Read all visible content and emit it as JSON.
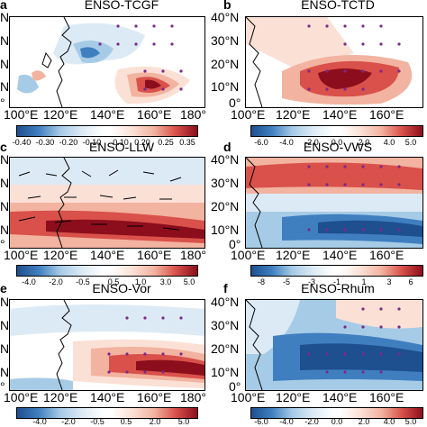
{
  "panels": [
    {
      "label": "a",
      "title": "ENSO-TCGF",
      "lat_ticks": [
        "N",
        "N",
        "N",
        "N",
        "°"
      ],
      "lon_ticks": [
        "100°E",
        "120°E",
        "140°E",
        "160°E",
        "180°"
      ],
      "colorbar": [
        "-0.40",
        "-0.30",
        "-0.20",
        "-0.10",
        "0.10",
        "0.20",
        "0.25",
        "0.35"
      ]
    },
    {
      "label": "b",
      "title": "ENSO-TCTD",
      "lat_ticks": [
        "40°N",
        "30°N",
        "20°N",
        "10°N",
        "0°"
      ],
      "lon_ticks": [
        "100°E",
        "120°E",
        "140°E",
        "160°E"
      ],
      "colorbar": [
        "-6.0",
        "-4.0",
        "-2.0",
        "0.0",
        "2.0",
        "4.0",
        "5.0"
      ]
    },
    {
      "label": "c",
      "title": "ENSO-LLW",
      "lat_ticks": [
        "N",
        "N",
        "N",
        "N",
        "°"
      ],
      "lon_ticks": [
        "100°E",
        "120°E",
        "140°E",
        "160°E",
        "180°"
      ],
      "colorbar": [
        "-4.0",
        "-2.0",
        "-0.5",
        "0.5",
        "1.0",
        "3.0",
        "5.0"
      ]
    },
    {
      "label": "d",
      "title": "ENSO-VWS",
      "lat_ticks": [
        "40°N",
        "30°N",
        "20°N",
        "10°N",
        "0°"
      ],
      "lon_ticks": [
        "100°E",
        "120°E",
        "140°E",
        "160°E"
      ],
      "colorbar": [
        "-8",
        "-5",
        "-3",
        "-1",
        "1",
        "3",
        "6"
      ]
    },
    {
      "label": "e",
      "title": "ENSO-Vor",
      "lat_ticks": [
        "N",
        "N",
        "N",
        "N",
        "°"
      ],
      "lon_ticks": [
        "100°E",
        "120°E",
        "140°E",
        "160°E",
        "180°"
      ],
      "colorbar": [
        "-4.0",
        "-2.0",
        "-0.5",
        "0.5",
        "2.0",
        "5.0"
      ]
    },
    {
      "label": "f",
      "title": "ENSO-Rhum",
      "lat_ticks": [
        "40°N",
        "30°N",
        "20°N",
        "10°N",
        "0°"
      ],
      "lon_ticks": [
        "100°E",
        "120°E",
        "140°E",
        "160°E"
      ],
      "colorbar": [
        "-6.0",
        "-4.0",
        "-2.0",
        "0.0",
        "2.0",
        "4.0",
        "5.0"
      ]
    }
  ],
  "colors": {
    "red_dark": "#8c0e1c",
    "red": "#d9514a",
    "red_light": "#f2b3a0",
    "red_pale": "#fbe0d6",
    "blue_dark": "#1e4f8e",
    "blue": "#3f7fc0",
    "blue_light": "#a6cbe6",
    "blue_pale": "#dceaf5",
    "land": "#000000",
    "dot": "#7a2a8a"
  }
}
